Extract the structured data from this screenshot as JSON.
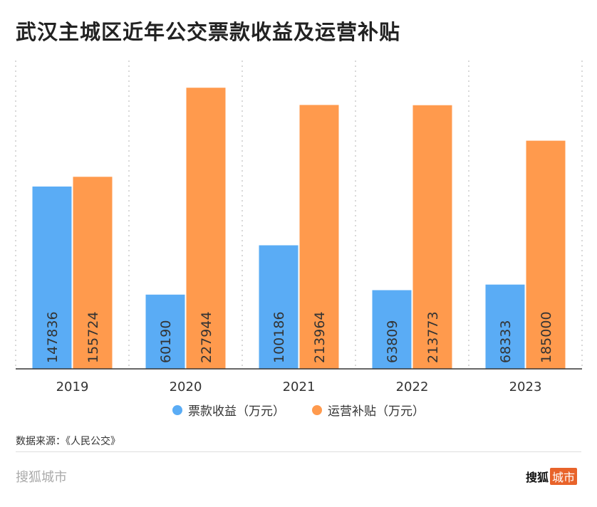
{
  "title": "武汉主城区近年公交票款收益及运营补贴",
  "chart_data": {
    "type": "bar",
    "title": "武汉主城区近年公交票款收益及运营补贴",
    "categories": [
      "2019",
      "2020",
      "2021",
      "2022",
      "2023"
    ],
    "series": [
      {
        "name": "票款收益（万元）",
        "color": "#5aacf5",
        "values": [
          147836,
          60190,
          100186,
          63809,
          68333
        ]
      },
      {
        "name": "运营补贴（万元）",
        "color": "#ff9a4d",
        "values": [
          155724,
          227944,
          213964,
          213773,
          185000
        ]
      }
    ],
    "ylim": [
      0,
      250000
    ],
    "grid": "vertical dotted",
    "legend": "bottom",
    "data_labels": "inside bars, rotated"
  },
  "source": "数据来源：《人民公交》",
  "brand": "搜狐城市",
  "logo": {
    "text": "搜狐",
    "tag": "城市"
  }
}
